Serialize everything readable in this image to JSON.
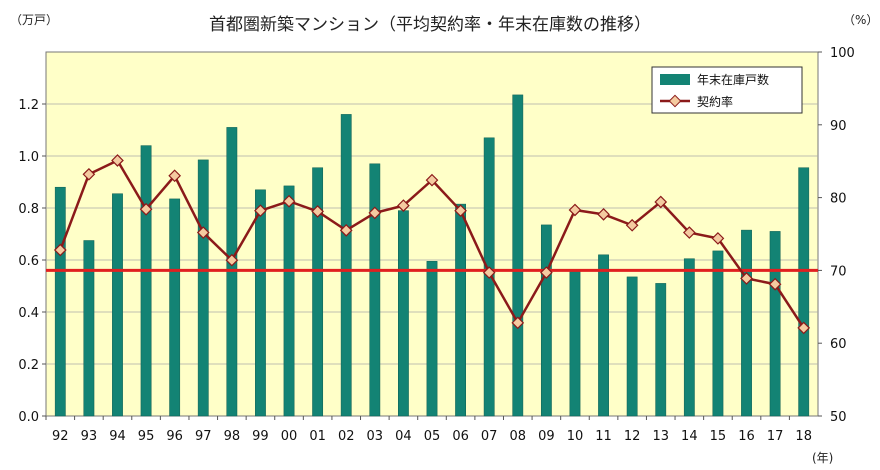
{
  "chart_data": {
    "type": "bar",
    "title": "首都圏新築マンション（平均契約率・年末在庫数の推移）",
    "left_unit": "（万戸）",
    "right_unit": "（%）",
    "x_unit": "(年)",
    "categories": [
      "92",
      "93",
      "94",
      "95",
      "96",
      "97",
      "98",
      "99",
      "00",
      "01",
      "02",
      "03",
      "04",
      "05",
      "06",
      "07",
      "08",
      "09",
      "10",
      "11",
      "12",
      "13",
      "14",
      "15",
      "16",
      "17",
      "18"
    ],
    "left_axis": {
      "min": 0,
      "max": 1.4,
      "ticks": [
        "0.0",
        "0.2",
        "0.4",
        "0.6",
        "0.8",
        "1.0",
        "1.2"
      ]
    },
    "right_axis": {
      "min": 50,
      "max": 100,
      "ticks": [
        "50",
        "60",
        "70",
        "80",
        "90",
        "100"
      ]
    },
    "series": [
      {
        "name": "年末在庫戸数",
        "kind": "bar",
        "axis": "left",
        "color": "#138374",
        "values": [
          0.88,
          0.675,
          0.855,
          1.04,
          0.835,
          0.985,
          1.11,
          0.87,
          0.885,
          0.955,
          1.16,
          0.97,
          0.79,
          0.595,
          0.815,
          1.07,
          1.235,
          0.735,
          0.56,
          0.62,
          0.535,
          0.51,
          0.605,
          0.635,
          0.715,
          0.71,
          0.955
        ]
      },
      {
        "name": "契約率",
        "kind": "line",
        "axis": "right",
        "color": "#8b1a1a",
        "marker_fill": "#f4caa0",
        "values": [
          72.8,
          83.2,
          85.1,
          78.4,
          83.0,
          75.2,
          71.4,
          78.2,
          79.5,
          78.1,
          75.5,
          77.9,
          78.9,
          82.4,
          78.2,
          69.7,
          62.8,
          69.7,
          78.3,
          77.7,
          76.2,
          79.4,
          75.2,
          74.4,
          68.9,
          68.1,
          62.1
        ]
      }
    ],
    "reference_line": {
      "axis": "right",
      "value": 70,
      "color": "#e02020"
    },
    "legend_position": "top-right",
    "plot_background": "#ffffc8",
    "grid": "horizontal"
  }
}
